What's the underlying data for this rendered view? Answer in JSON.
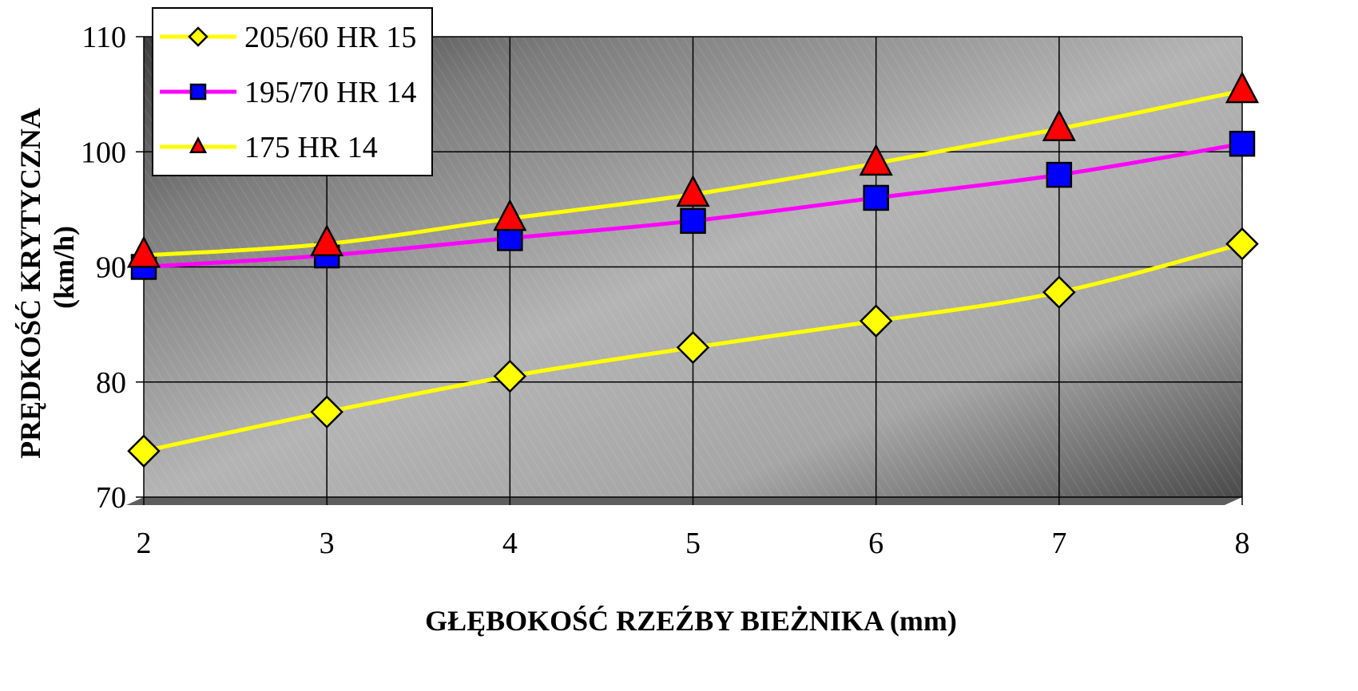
{
  "chart_data": {
    "type": "line",
    "title": "",
    "xlabel": "GŁĘBOKOŚĆ RZEŹBY BIEŻNIKA (mm)",
    "ylabel_line1": "PRĘDKOŚĆ KRYTYCZNA",
    "ylabel_line2": "(km/h)",
    "x": [
      2,
      3,
      4,
      5,
      6,
      7,
      8
    ],
    "xlim": [
      2,
      8
    ],
    "ylim": [
      70,
      110
    ],
    "y_ticks": [
      70,
      80,
      90,
      100,
      110
    ],
    "grid": true,
    "legend_position": "top-left",
    "series": [
      {
        "name": "205/60 HR 15",
        "values": [
          74,
          77.4,
          80.5,
          83,
          85.3,
          87.8,
          92
        ],
        "line_color": "#ffff00",
        "marker": "diamond",
        "marker_color": "#ffff00"
      },
      {
        "name": "195/70 HR 14",
        "values": [
          90,
          91,
          92.5,
          94,
          96,
          98,
          100.7
        ],
        "line_color": "#ff00ff",
        "marker": "square",
        "marker_color": "#0000ff"
      },
      {
        "name": "175 HR 14",
        "values": [
          91,
          92,
          94.2,
          96.3,
          99,
          102,
          105.3
        ],
        "line_color": "#ffff00",
        "marker": "triangle",
        "marker_color": "#ff0000"
      }
    ]
  }
}
